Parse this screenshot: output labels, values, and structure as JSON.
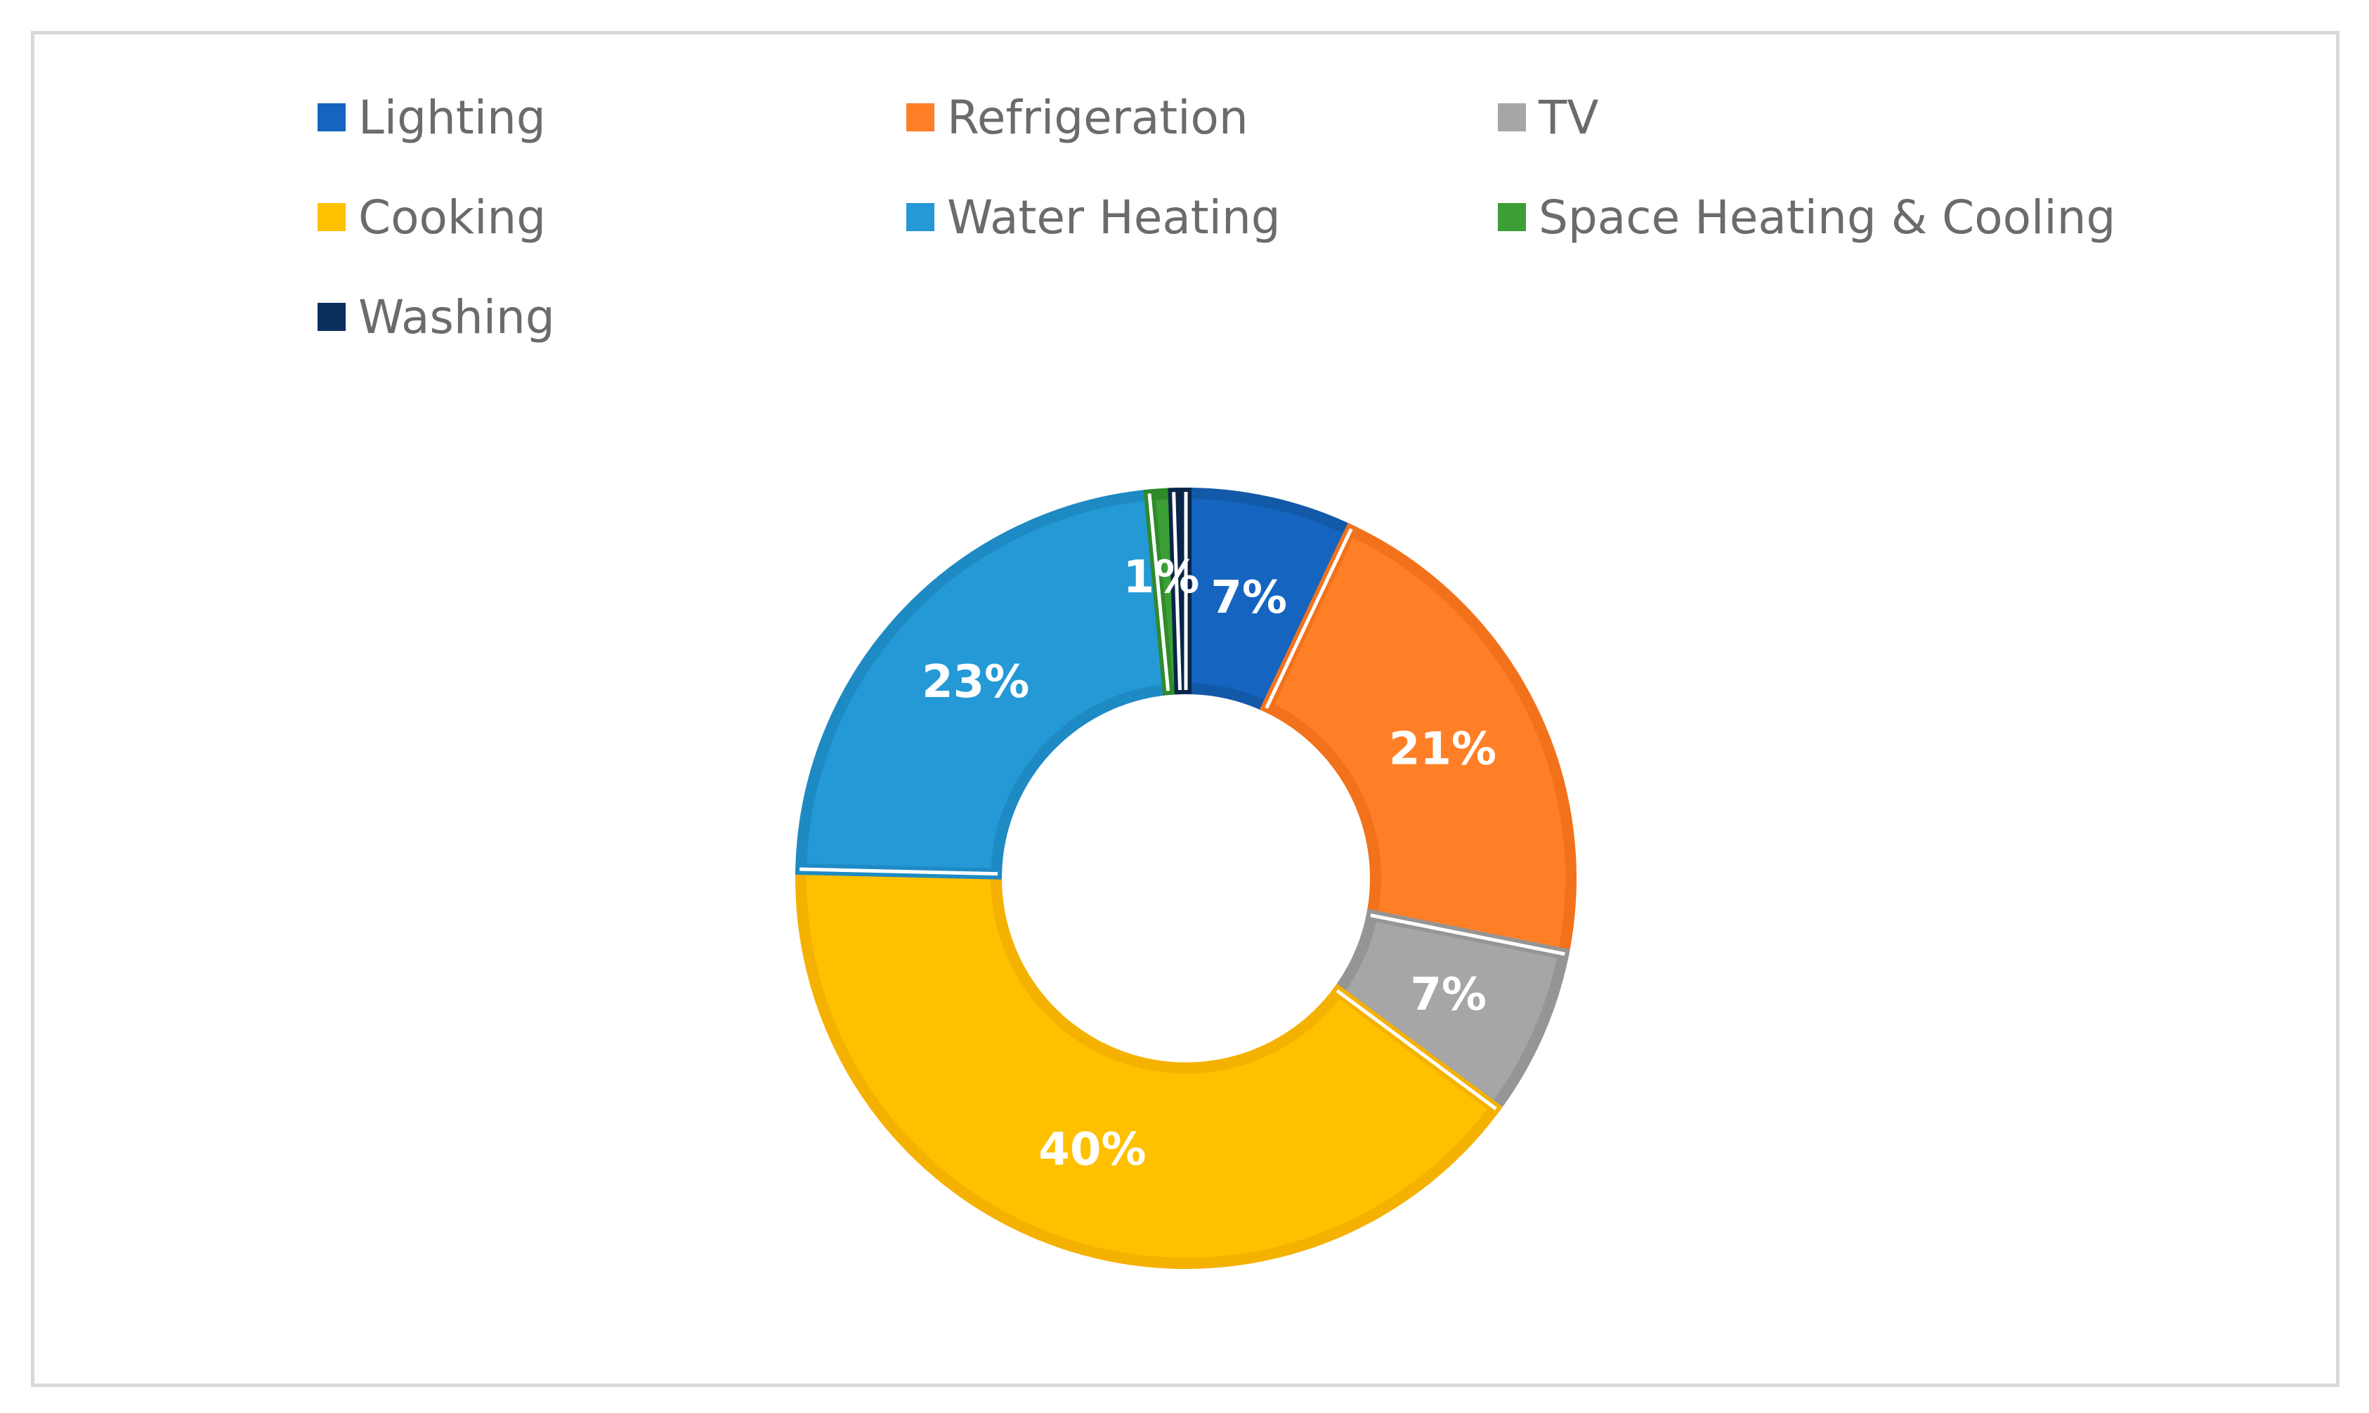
{
  "chart_data": {
    "type": "donut",
    "title": "",
    "legend_position": "top",
    "series": [
      {
        "categories": [
          "Lighting",
          "Refrigeration",
          "TV",
          "Cooking",
          "Water Heating",
          "Space Heating & Cooling",
          "Washing"
        ],
        "values": [
          7,
          21,
          7,
          40,
          23,
          1,
          0.5
        ],
        "labels": [
          "7%",
          "21%",
          "7%",
          "40%",
          "23%",
          "1%",
          ""
        ],
        "colors": [
          "#1565C0",
          "#FF7F27",
          "#A6A6A6",
          "#FFC000",
          "#2499D6",
          "#3C9F36",
          "#0A2F5E"
        ],
        "outline_colors": [
          "#1259A8",
          "#F2721B",
          "#959595",
          "#F5B100",
          "#1E8AC4",
          "#2F8A2A",
          "#082549"
        ]
      }
    ],
    "slice_order": [
      "Lighting",
      "Refrigeration",
      "TV",
      "Cooking",
      "Water Heating",
      "Space Heating & Cooling",
      "Washing"
    ]
  }
}
